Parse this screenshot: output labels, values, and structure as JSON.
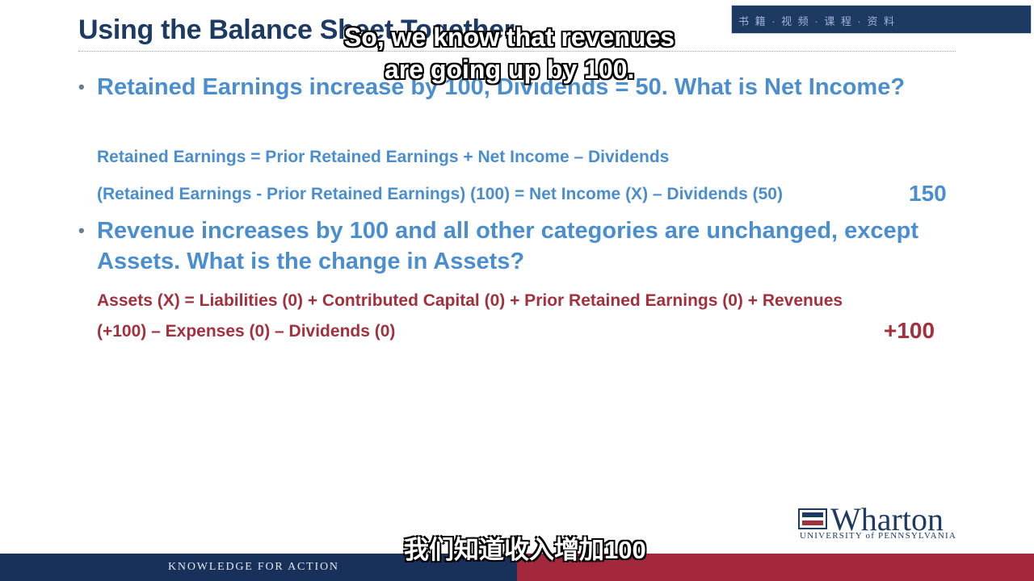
{
  "slide": {
    "title": "Using the Balance Sheet Together",
    "corner_text": "书 籍 · 视 频 · 课 程 · 资 料"
  },
  "bullets": [
    {
      "text": "Retained Earnings increase by 100, Dividends = 50.  What is Net Income?",
      "formula_1": "Retained Earnings = Prior Retained Earnings + Net Income – Dividends",
      "formula_2": "(Retained Earnings - Prior Retained Earnings) (100) = Net Income (X) – Dividends (50)",
      "answer": "150"
    },
    {
      "text": "Revenue increases by 100 and all other categories are unchanged, except Assets.  What is the change in Assets?",
      "formula_1": "Assets (X) = Liabilities (0) + Contributed Capital (0) + Prior Retained Earnings (0) + Revenues",
      "formula_2": "(+100) – Expenses (0) – Dividends (0)",
      "answer": "+100"
    }
  ],
  "subtitles": {
    "en_line1": "So, we know that revenues",
    "en_line2": "are going up by 100.",
    "zh": "我们知道收入增加100"
  },
  "logo": {
    "name": "Wharton",
    "university": "UNIVERSITY of PENNSYLVANIA"
  },
  "footer": {
    "tagline": "KNOWLEDGE FOR ACTION"
  },
  "colors": {
    "navy": "#1d3a63",
    "blue_text": "#4a8ed0",
    "red_text": "#a3303d",
    "footer_red": "#a3283b"
  }
}
